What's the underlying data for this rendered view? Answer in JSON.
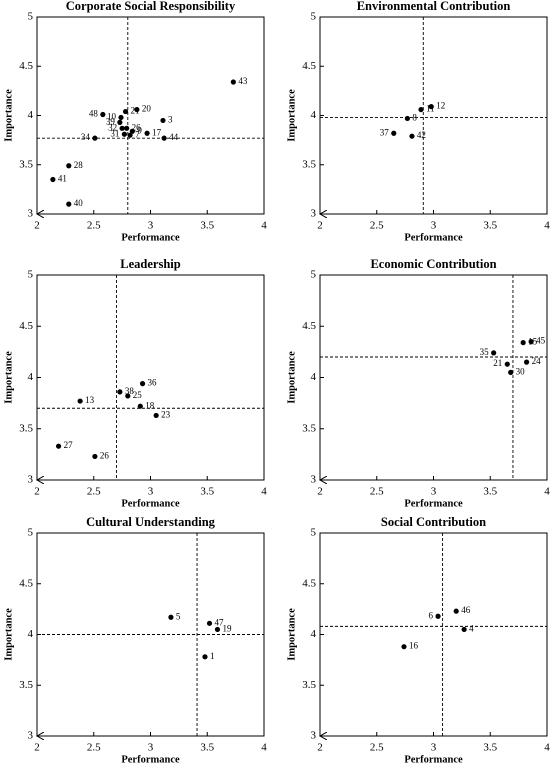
{
  "chart_data": [
    {
      "type": "scatter",
      "title": "Corporate Social Responsibility",
      "x_label": "Performance",
      "y_label": "Importance",
      "labels": [
        "43",
        "20",
        "21",
        "3",
        "48",
        "10",
        "39",
        "32",
        "26",
        "9",
        "17",
        "31",
        "7",
        "44",
        "34",
        "28",
        "41",
        "40"
      ],
      "x": [
        3.73,
        2.88,
        2.78,
        3.11,
        2.58,
        2.74,
        2.73,
        2.75,
        2.79,
        2.84,
        2.97,
        2.77,
        2.82,
        3.12,
        2.51,
        2.28,
        2.14,
        2.28
      ],
      "y": [
        4.34,
        4.06,
        4.04,
        3.95,
        4.01,
        3.98,
        3.93,
        3.87,
        3.87,
        3.84,
        3.82,
        3.81,
        3.8,
        3.77,
        3.77,
        3.49,
        3.35,
        3.1
      ],
      "ref_x": 2.8,
      "ref_y": 3.77,
      "xlim": [
        2,
        4
      ],
      "xticks": [
        2,
        2.5,
        3,
        3.5,
        4
      ],
      "ylim": [
        3,
        5
      ],
      "yticks": [
        3,
        3.5,
        4,
        4.5,
        5
      ],
      "color": "#000000"
    },
    {
      "type": "scatter",
      "title": "Environmental Contribution",
      "x_label": "Performance",
      "y_label": "Importance",
      "labels": [
        "12",
        "11",
        "8",
        "37",
        "42"
      ],
      "x": [
        2.98,
        2.89,
        2.77,
        2.65,
        2.81
      ],
      "y": [
        4.09,
        4.06,
        3.97,
        3.82,
        3.79
      ],
      "ref_x": 2.91,
      "ref_y": 3.98,
      "xlim": [
        2,
        4
      ],
      "xticks": [
        2,
        2.5,
        3,
        3.5,
        4
      ],
      "ylim": [
        3,
        5
      ],
      "yticks": [
        3,
        3.5,
        4,
        4.5,
        5
      ],
      "color": "#000000"
    },
    {
      "type": "scatter",
      "title": "Leadership",
      "x_label": "Performance",
      "y_label": "Importance",
      "labels": [
        "38",
        "36",
        "25",
        "13",
        "18",
        "23",
        "27",
        "26"
      ],
      "x": [
        2.73,
        2.93,
        2.8,
        2.38,
        2.91,
        3.05,
        2.19,
        2.51
      ],
      "y": [
        3.86,
        3.94,
        3.82,
        3.77,
        3.72,
        3.63,
        3.33,
        3.23
      ],
      "ref_x": 2.7,
      "ref_y": 3.7,
      "xlim": [
        2,
        4
      ],
      "xticks": [
        2,
        2.5,
        3,
        3.5,
        4
      ],
      "ylim": [
        3,
        5
      ],
      "yticks": [
        3,
        3.5,
        4,
        4.5,
        5
      ],
      "color": "#000000"
    },
    {
      "type": "scatter",
      "title": "Economic Contribution",
      "x_label": "Performance",
      "y_label": "Importance",
      "labels": [
        "35",
        "15",
        "45",
        "21",
        "24",
        "30"
      ],
      "x": [
        3.53,
        3.79,
        3.86,
        3.65,
        3.82,
        3.68
      ],
      "y": [
        4.24,
        4.34,
        4.35,
        4.13,
        4.15,
        4.05
      ],
      "ref_x": 3.7,
      "ref_y": 4.2,
      "xlim": [
        2,
        4
      ],
      "xticks": [
        2,
        2.5,
        3,
        3.5,
        4
      ],
      "ylim": [
        3,
        5
      ],
      "yticks": [
        3,
        3.5,
        4,
        4.5,
        5
      ],
      "color": "#000000"
    },
    {
      "type": "scatter",
      "title": "Cultural Understanding",
      "x_label": "Performance",
      "y_label": "Importance",
      "labels": [
        "5",
        "47",
        "19",
        "1"
      ],
      "x": [
        3.18,
        3.52,
        3.59,
        3.48
      ],
      "y": [
        4.17,
        4.11,
        4.05,
        3.78
      ],
      "ref_x": 3.41,
      "ref_y": 4.0,
      "xlim": [
        2,
        4
      ],
      "xticks": [
        2,
        2.5,
        3,
        3.5,
        4
      ],
      "ylim": [
        3,
        5
      ],
      "yticks": [
        3,
        3.5,
        4,
        4.5,
        5
      ],
      "color": "#000000"
    },
    {
      "type": "scatter",
      "title": "Social Contribution",
      "x_label": "Performance",
      "y_label": "Importance",
      "labels": [
        "46",
        "6",
        "4",
        "16"
      ],
      "x": [
        3.2,
        3.04,
        3.27,
        2.74
      ],
      "y": [
        4.23,
        4.18,
        4.05,
        3.88
      ],
      "ref_x": 3.08,
      "ref_y": 4.08,
      "xlim": [
        2,
        4
      ],
      "xticks": [
        2,
        2.5,
        3,
        3.5,
        4
      ],
      "ylim": [
        3,
        5
      ],
      "yticks": [
        3,
        3.5,
        4,
        4.5,
        5
      ],
      "color": "#000000"
    }
  ]
}
